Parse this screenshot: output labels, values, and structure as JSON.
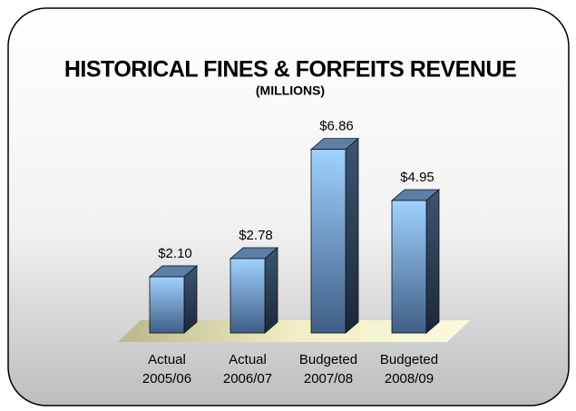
{
  "chart_data": {
    "type": "bar3d",
    "title": "HISTORICAL FINES & FORFEITS REVENUE",
    "subtitle": "(MILLIONS)",
    "categories": [
      [
        "Actual",
        "2005/06"
      ],
      [
        "Actual",
        "2006/07"
      ],
      [
        "Budgeted",
        "2007/08"
      ],
      [
        "Budgeted",
        "2008/09"
      ]
    ],
    "values": [
      2.1,
      2.78,
      6.86,
      4.95
    ],
    "value_labels": [
      "$2.10",
      "$2.78",
      "$6.86",
      "$4.95"
    ],
    "color": "#8fc4ff"
  }
}
